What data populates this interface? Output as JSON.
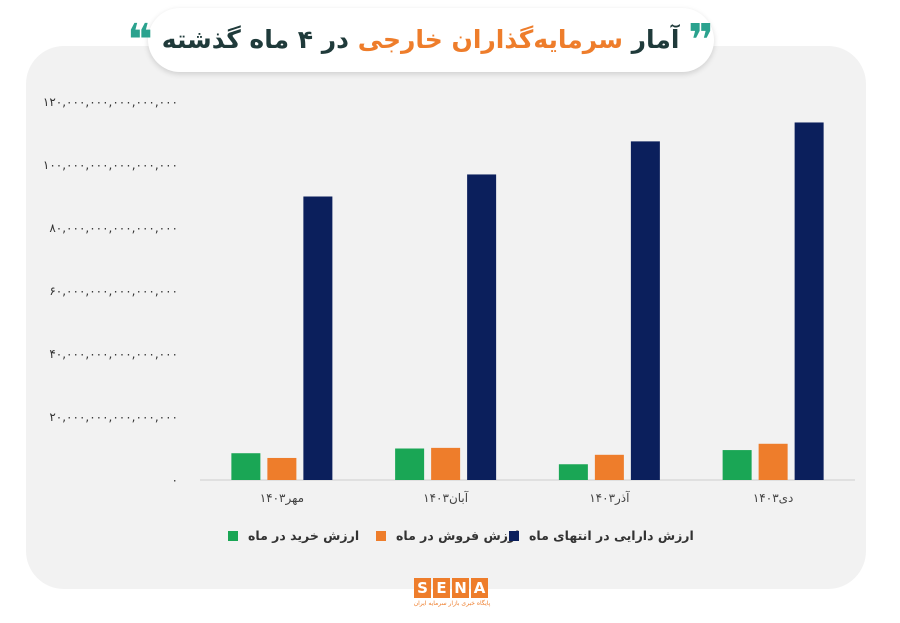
{
  "header": {
    "title_part1": "آمار",
    "title_highlight": "سرمایه‌گذاران خارجی",
    "title_part2": "در ۴ ماه گذشته",
    "quote_open": "❞",
    "quote_close": "❝"
  },
  "logo": {
    "letters": [
      "S",
      "E",
      "N",
      "A"
    ],
    "subtitle": "پایگاه خبری بازار سرمایه ایران"
  },
  "chart_data": {
    "type": "bar",
    "title": "",
    "xlabel": "",
    "ylabel": "",
    "ylim": [
      0,
      120000000000000000
    ],
    "yticks": [
      0,
      20000000000000000,
      40000000000000000,
      60000000000000000,
      80000000000000000,
      100000000000000000,
      120000000000000000
    ],
    "ytick_labels": [
      "۰",
      "۲۰,۰۰۰,۰۰۰,۰۰۰,۰۰۰,۰۰۰",
      "۴۰,۰۰۰,۰۰۰,۰۰۰,۰۰۰,۰۰۰",
      "۶۰,۰۰۰,۰۰۰,۰۰۰,۰۰۰,۰۰۰",
      "۸۰,۰۰۰,۰۰۰,۰۰۰,۰۰۰,۰۰۰",
      "۱۰۰,۰۰۰,۰۰۰,۰۰۰,۰۰۰,۰۰۰",
      "۱۲۰,۰۰۰,۰۰۰,۰۰۰,۰۰۰,۰۰۰"
    ],
    "categories": [
      "مهر۱۴۰۳",
      "آبان۱۴۰۳",
      "آذر۱۴۰۳",
      "دی۱۴۰۳"
    ],
    "series": [
      {
        "name": "ارزش خرید در ماه",
        "color": "#1aa655",
        "values": [
          8500000000000000,
          10000000000000000,
          5000000000000000,
          9500000000000000
        ]
      },
      {
        "name": "ارزش فروش در ماه",
        "color": "#ee7d2b",
        "values": [
          7000000000000000,
          10200000000000000,
          8000000000000000,
          11500000000000000
        ]
      },
      {
        "name": "ارزش دارایی در انتهای ماه",
        "color": "#0b1f5c",
        "values": [
          90000000000000000,
          97000000000000000,
          107500000000000000,
          113500000000000000
        ]
      }
    ],
    "grid": false,
    "legend_position": "bottom"
  }
}
